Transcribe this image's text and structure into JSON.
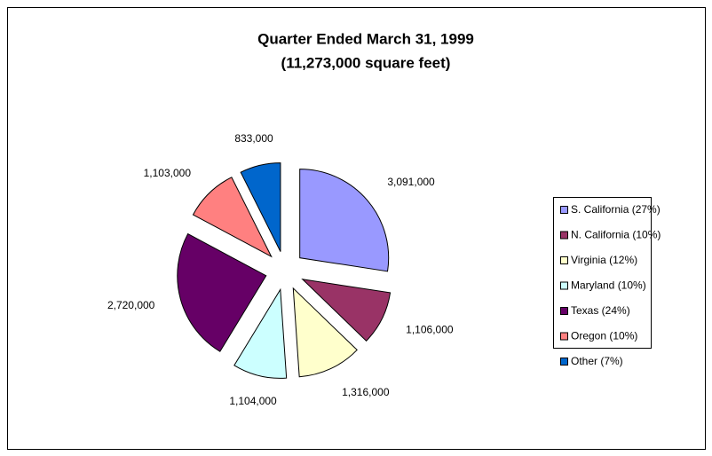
{
  "chart_data": {
    "type": "pie",
    "title": "Quarter Ended March 31, 1999",
    "subtitle": "(11,273,000 square feet)",
    "categories": [
      "S. California (27%)",
      "N. California (10%)",
      "Virginia (12%)",
      "Maryland (10%)",
      "Texas (24%)",
      "Oregon (10%)",
      "Other (7%)"
    ],
    "values": [
      3091000,
      1106000,
      1316000,
      1104000,
      2720000,
      1103000,
      833000
    ],
    "value_labels": [
      "3,091,000",
      "1,106,000",
      "1,316,000",
      "1,104,000",
      "2,720,000",
      "1,103,000",
      "833,000"
    ],
    "colors": [
      "#9999ff",
      "#993366",
      "#ffffcc",
      "#ccffff",
      "#660066",
      "#ff8080",
      "#0066cc"
    ],
    "legend": "right"
  }
}
